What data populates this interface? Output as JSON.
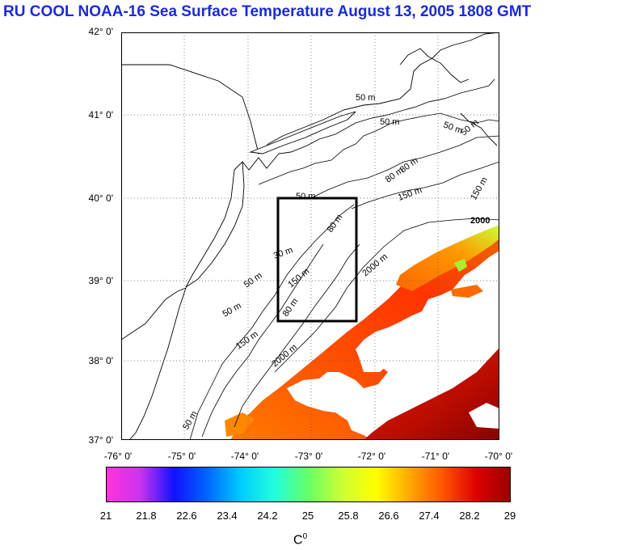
{
  "title": "RU COOL  NOAA-16 Sea Surface Temperature August 13, 2005 1808 GMT",
  "map": {
    "lat_labels": [
      "42° 0'",
      "41° 0'",
      "40° 0'",
      "39° 0'",
      "38° 0'",
      "37° 0'"
    ],
    "lon_labels": [
      "-76° 0'",
      "-75° 0'",
      "-74° 0'",
      "-73° 0'",
      "-72° 0'",
      "-71° 0'",
      "-70° 0'"
    ],
    "lat_range": [
      37,
      42
    ],
    "lon_range": [
      -76,
      -70
    ],
    "grid": "dotted",
    "isobaths": [
      {
        "label": "50 m"
      },
      {
        "label": "50 m"
      },
      {
        "label": "50 m"
      },
      {
        "label": "50 m"
      },
      {
        "label": "50 m"
      },
      {
        "label": "50 m"
      },
      {
        "label": "50 m"
      },
      {
        "label": "80 m"
      },
      {
        "label": "80 m"
      },
      {
        "label": "80 m"
      },
      {
        "label": "150 m"
      },
      {
        "label": "150 m"
      },
      {
        "label": "150 m"
      },
      {
        "label": "150 m"
      },
      {
        "label": "2000 m"
      },
      {
        "label": "2000 m"
      },
      {
        "label": "2000"
      },
      {
        "label": "30 m"
      },
      {
        "label": "50 m"
      },
      {
        "label": "80 m"
      }
    ],
    "study_box": {
      "lat_min": 38.5,
      "lat_max": 40.0,
      "lon_min": -73.5,
      "lon_max": -72.5
    },
    "land_color": "#ffffff",
    "cloud_color": "#ffffff"
  },
  "colorbar": {
    "ticks": [
      "21",
      "21.8",
      "22.6",
      "23.4",
      "24.2",
      "25",
      "25.8",
      "26.6",
      "27.4",
      "28.2",
      "29"
    ],
    "min": 21,
    "max": 29,
    "unit": "C",
    "unit_sup": "0",
    "colors": [
      "#ff33dd",
      "#cc33ee",
      "#1111ff",
      "#0066ff",
      "#00ccff",
      "#22ffdd",
      "#66ff66",
      "#ccff33",
      "#ffff00",
      "#ffaa00",
      "#ff5500",
      "#dd0000",
      "#990000"
    ]
  }
}
